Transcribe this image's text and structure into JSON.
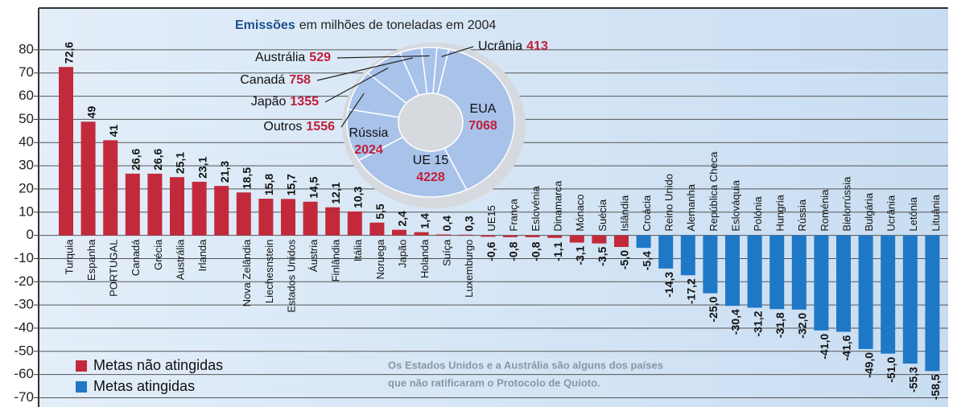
{
  "chart_data": [
    {
      "type": "bar",
      "categories": [
        "Turquia",
        "Espanha",
        "PORTUGAL",
        "Canadá",
        "Grécia",
        "Austrália",
        "Irlanda",
        null,
        "Nova Zelândia",
        "Liechesnstein",
        "Estados Unidos",
        "Áustria",
        "Finlândia",
        "Itália",
        "Noruega",
        "Japão",
        "Holanda",
        "Suíça",
        "Luxemburgo",
        "UE15",
        "França",
        "Eslovénia",
        "Dinamarca",
        "Mónaco",
        "Suécia",
        "Islândia",
        "Croácia",
        "Reino Unido",
        "Alemanha",
        "República Checa",
        "Eslováquia",
        "Polónia",
        "Hungria",
        "Rússia",
        "Roménia",
        "Bielorrússia",
        "Bulgária",
        "Ucrânia",
        "Letónia",
        "Lituânia"
      ],
      "series": [
        {
          "name": "Metas não atingidas",
          "color": "#c22a3c",
          "values": [
            72.6,
            49,
            41,
            26.6,
            26.6,
            25.1,
            23.1,
            21.3,
            18.5,
            15.8,
            15.7,
            14.5,
            12.1,
            10.3,
            5.5,
            2.4,
            1.4,
            0.4,
            0.3,
            -0.6,
            -0.8,
            -0.8,
            -1.1,
            -3.1,
            -3.5,
            -5.0,
            null,
            null,
            null,
            null,
            null,
            null,
            null,
            null,
            null,
            null,
            null,
            null,
            null,
            null
          ],
          "value_labels": [
            "72,6",
            "49",
            "41",
            "26,6",
            "26,6",
            "25,1",
            "23,1",
            "21,3",
            "18,5",
            "15,8",
            "15,7",
            "14,5",
            "12,1",
            "10,3",
            "5,5",
            "2,4",
            "1,4",
            "0,4",
            "0,3",
            "-0,6",
            "-0,8",
            "-0,8",
            "-1,1",
            "-3,1",
            "-3,5",
            "-5,0",
            null,
            null,
            null,
            null,
            null,
            null,
            null,
            null,
            null,
            null,
            null,
            null,
            null,
            null
          ]
        },
        {
          "name": "Metas atingidas",
          "color": "#1f78c6",
          "values": [
            null,
            null,
            null,
            null,
            null,
            null,
            null,
            null,
            null,
            null,
            null,
            null,
            null,
            null,
            null,
            null,
            null,
            null,
            null,
            null,
            null,
            null,
            null,
            null,
            null,
            null,
            -5.4,
            -14.3,
            -17.2,
            -25.0,
            -30.4,
            -31.2,
            -31.8,
            -32.0,
            -41.0,
            -41.6,
            -49.0,
            -51.0,
            -55.3,
            -58.5
          ],
          "value_labels": [
            null,
            null,
            null,
            null,
            null,
            null,
            null,
            null,
            null,
            null,
            null,
            null,
            null,
            null,
            null,
            null,
            null,
            null,
            null,
            null,
            null,
            null,
            null,
            null,
            null,
            null,
            "-5,4",
            "-14,3",
            "-17,2",
            "-25,0",
            "-30,4",
            "-31,2",
            "-31,8",
            "-32,0",
            "-41,0",
            "-41,6",
            "-49,0",
            "-51,0",
            "-55,3",
            "-58,5"
          ]
        }
      ],
      "ylim": [
        -74,
        98
      ],
      "yticks": [
        80,
        70,
        60,
        50,
        40,
        30,
        20,
        10,
        0,
        -10,
        -20,
        -30,
        -40,
        -50,
        -60,
        -70
      ],
      "grid": true,
      "legend": "lower left",
      "annotation": [
        "Os Estados Unidos e a Austrália são alguns dos países",
        "que não ratificaram o Protocolo de Quioto."
      ]
    },
    {
      "type": "pie",
      "title": [
        "Emissões",
        "em milhões de toneladas em 2004"
      ],
      "labels": [
        "EUA",
        "UE 15",
        "Rússia",
        "Outros",
        "Japão",
        "Canadá",
        "Austrália",
        "Ucrânia"
      ],
      "values": [
        7068,
        4228,
        2024,
        1556,
        1355,
        758,
        529,
        413
      ],
      "color": "#a8c2ea",
      "donut": true
    }
  ]
}
